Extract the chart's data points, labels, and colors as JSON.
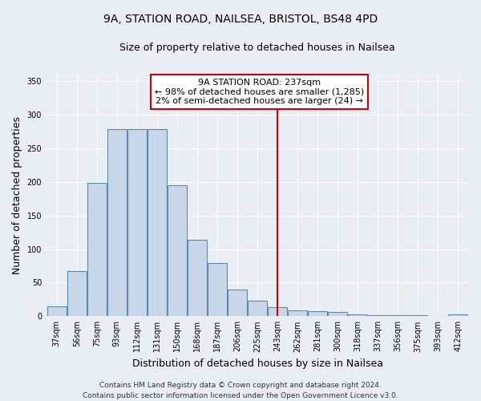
{
  "title_line1": "9A, STATION ROAD, NAILSEA, BRISTOL, BS48 4PD",
  "title_line2": "Size of property relative to detached houses in Nailsea",
  "xlabel": "Distribution of detached houses by size in Nailsea",
  "ylabel": "Number of detached properties",
  "footer_line1": "Contains HM Land Registry data © Crown copyright and database right 2024.",
  "footer_line2": "Contains public sector information licensed under the Open Government Licence v3.0.",
  "annotation_title": "9A STATION ROAD: 237sqm",
  "annotation_line2": "← 98% of detached houses are smaller (1,285)",
  "annotation_line3": "2% of semi-detached houses are larger (24) →",
  "bar_labels": [
    "37sqm",
    "56sqm",
    "75sqm",
    "93sqm",
    "112sqm",
    "131sqm",
    "150sqm",
    "168sqm",
    "187sqm",
    "206sqm",
    "225sqm",
    "243sqm",
    "262sqm",
    "281sqm",
    "300sqm",
    "318sqm",
    "337sqm",
    "356sqm",
    "375sqm",
    "393sqm",
    "412sqm"
  ],
  "bar_values": [
    15,
    67,
    199,
    279,
    279,
    279,
    195,
    114,
    79,
    40,
    23,
    13,
    9,
    7,
    6,
    3,
    2,
    1,
    1,
    0,
    3
  ],
  "bar_color": "#c8d8e8",
  "bar_edge_color": "#5a8ab0",
  "vline_color": "#cc0000",
  "annotation_box_color": "#cc0000",
  "ylim": [
    0,
    360
  ],
  "yticks": [
    0,
    50,
    100,
    150,
    200,
    250,
    300,
    350
  ],
  "background_color": "#e8eef4",
  "plot_bg_color": "#e8eef4",
  "title1_fontsize": 10,
  "title2_fontsize": 9,
  "ylabel_fontsize": 9,
  "xlabel_fontsize": 9,
  "tick_fontsize": 7,
  "footer_fontsize": 6.5
}
